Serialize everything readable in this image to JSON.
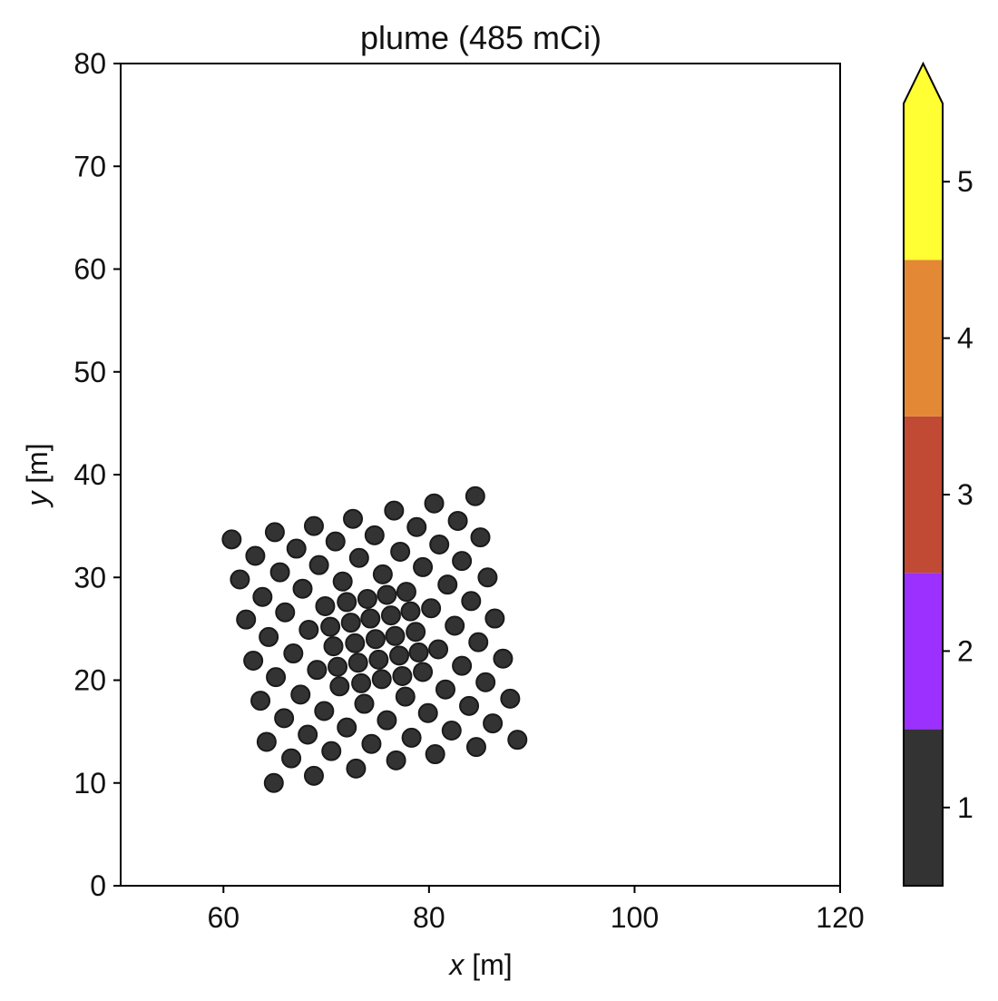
{
  "chart_data": {
    "type": "scatter",
    "title": "plume (485 mCi)",
    "xlabel_var": "x",
    "xlabel_unit": "[m]",
    "ylabel_var": "y",
    "ylabel_unit": "[m]",
    "xlim": [
      50,
      120
    ],
    "ylim": [
      0,
      80
    ],
    "xticks": [
      "60",
      "80",
      "100",
      "120"
    ],
    "yticks": [
      "0",
      "10",
      "20",
      "30",
      "40",
      "50",
      "60",
      "70",
      "80"
    ],
    "grid": false,
    "colorbar": {
      "levels": [
        {
          "value": 1,
          "color": "#333333"
        },
        {
          "value": 2,
          "color": "#9b30ff"
        },
        {
          "value": 3,
          "color": "#c14a34"
        },
        {
          "value": 4,
          "color": "#e38834"
        },
        {
          "value": 5,
          "color": "#ffff33"
        }
      ],
      "ticks": [
        "1",
        "2",
        "3",
        "4",
        "5"
      ],
      "extend": "max"
    },
    "point_level": 1,
    "points": [
      [
        60.8,
        33.7
      ],
      [
        65.0,
        34.4
      ],
      [
        68.8,
        35.0
      ],
      [
        72.6,
        35.7
      ],
      [
        76.6,
        36.5
      ],
      [
        80.5,
        37.2
      ],
      [
        84.5,
        37.9
      ],
      [
        63.1,
        32.1
      ],
      [
        67.1,
        32.8
      ],
      [
        70.9,
        33.5
      ],
      [
        74.7,
        34.1
      ],
      [
        78.8,
        34.9
      ],
      [
        82.8,
        35.5
      ],
      [
        61.6,
        29.8
      ],
      [
        65.5,
        30.5
      ],
      [
        69.3,
        31.2
      ],
      [
        73.2,
        31.9
      ],
      [
        77.2,
        32.5
      ],
      [
        81.0,
        33.2
      ],
      [
        85.0,
        33.9
      ],
      [
        63.8,
        28.1
      ],
      [
        67.7,
        28.9
      ],
      [
        71.6,
        29.6
      ],
      [
        75.5,
        30.3
      ],
      [
        79.4,
        31.0
      ],
      [
        83.2,
        31.6
      ],
      [
        62.2,
        25.9
      ],
      [
        66.0,
        26.6
      ],
      [
        69.9,
        27.2
      ],
      [
        72.0,
        27.6
      ],
      [
        74.0,
        27.9
      ],
      [
        75.9,
        28.3
      ],
      [
        77.8,
        28.6
      ],
      [
        81.8,
        29.3
      ],
      [
        85.7,
        30.0
      ],
      [
        64.4,
        24.2
      ],
      [
        68.3,
        24.9
      ],
      [
        70.4,
        25.2
      ],
      [
        72.4,
        25.6
      ],
      [
        74.3,
        26.0
      ],
      [
        76.3,
        26.3
      ],
      [
        78.2,
        26.7
      ],
      [
        80.2,
        27.0
      ],
      [
        84.1,
        27.7
      ],
      [
        62.9,
        21.9
      ],
      [
        66.8,
        22.6
      ],
      [
        70.7,
        23.3
      ],
      [
        72.8,
        23.6
      ],
      [
        74.8,
        24.0
      ],
      [
        76.7,
        24.3
      ],
      [
        78.7,
        24.7
      ],
      [
        82.5,
        25.3
      ],
      [
        86.4,
        26.0
      ],
      [
        65.1,
        20.3
      ],
      [
        69.1,
        21.0
      ],
      [
        71.1,
        21.3
      ],
      [
        73.1,
        21.7
      ],
      [
        75.1,
        22.0
      ],
      [
        77.1,
        22.4
      ],
      [
        79.0,
        22.7
      ],
      [
        80.9,
        23.0
      ],
      [
        84.8,
        23.7
      ],
      [
        63.6,
        18.0
      ],
      [
        67.5,
        18.6
      ],
      [
        71.3,
        19.4
      ],
      [
        73.4,
        19.7
      ],
      [
        75.4,
        20.1
      ],
      [
        77.4,
        20.4
      ],
      [
        79.4,
        20.8
      ],
      [
        83.2,
        21.4
      ],
      [
        87.2,
        22.1
      ],
      [
        65.9,
        16.3
      ],
      [
        69.8,
        17.0
      ],
      [
        73.7,
        17.7
      ],
      [
        77.7,
        18.4
      ],
      [
        81.6,
        19.1
      ],
      [
        85.5,
        19.8
      ],
      [
        64.2,
        14.0
      ],
      [
        68.2,
        14.7
      ],
      [
        72.0,
        15.4
      ],
      [
        75.9,
        16.1
      ],
      [
        79.9,
        16.8
      ],
      [
        83.9,
        17.5
      ],
      [
        87.9,
        18.2
      ],
      [
        66.6,
        12.4
      ],
      [
        70.5,
        13.1
      ],
      [
        74.4,
        13.8
      ],
      [
        78.3,
        14.4
      ],
      [
        82.2,
        15.1
      ],
      [
        86.2,
        15.8
      ],
      [
        64.9,
        10.0
      ],
      [
        68.8,
        10.7
      ],
      [
        72.9,
        11.4
      ],
      [
        76.8,
        12.2
      ],
      [
        80.6,
        12.8
      ],
      [
        84.6,
        13.5
      ],
      [
        88.6,
        14.2
      ]
    ]
  }
}
